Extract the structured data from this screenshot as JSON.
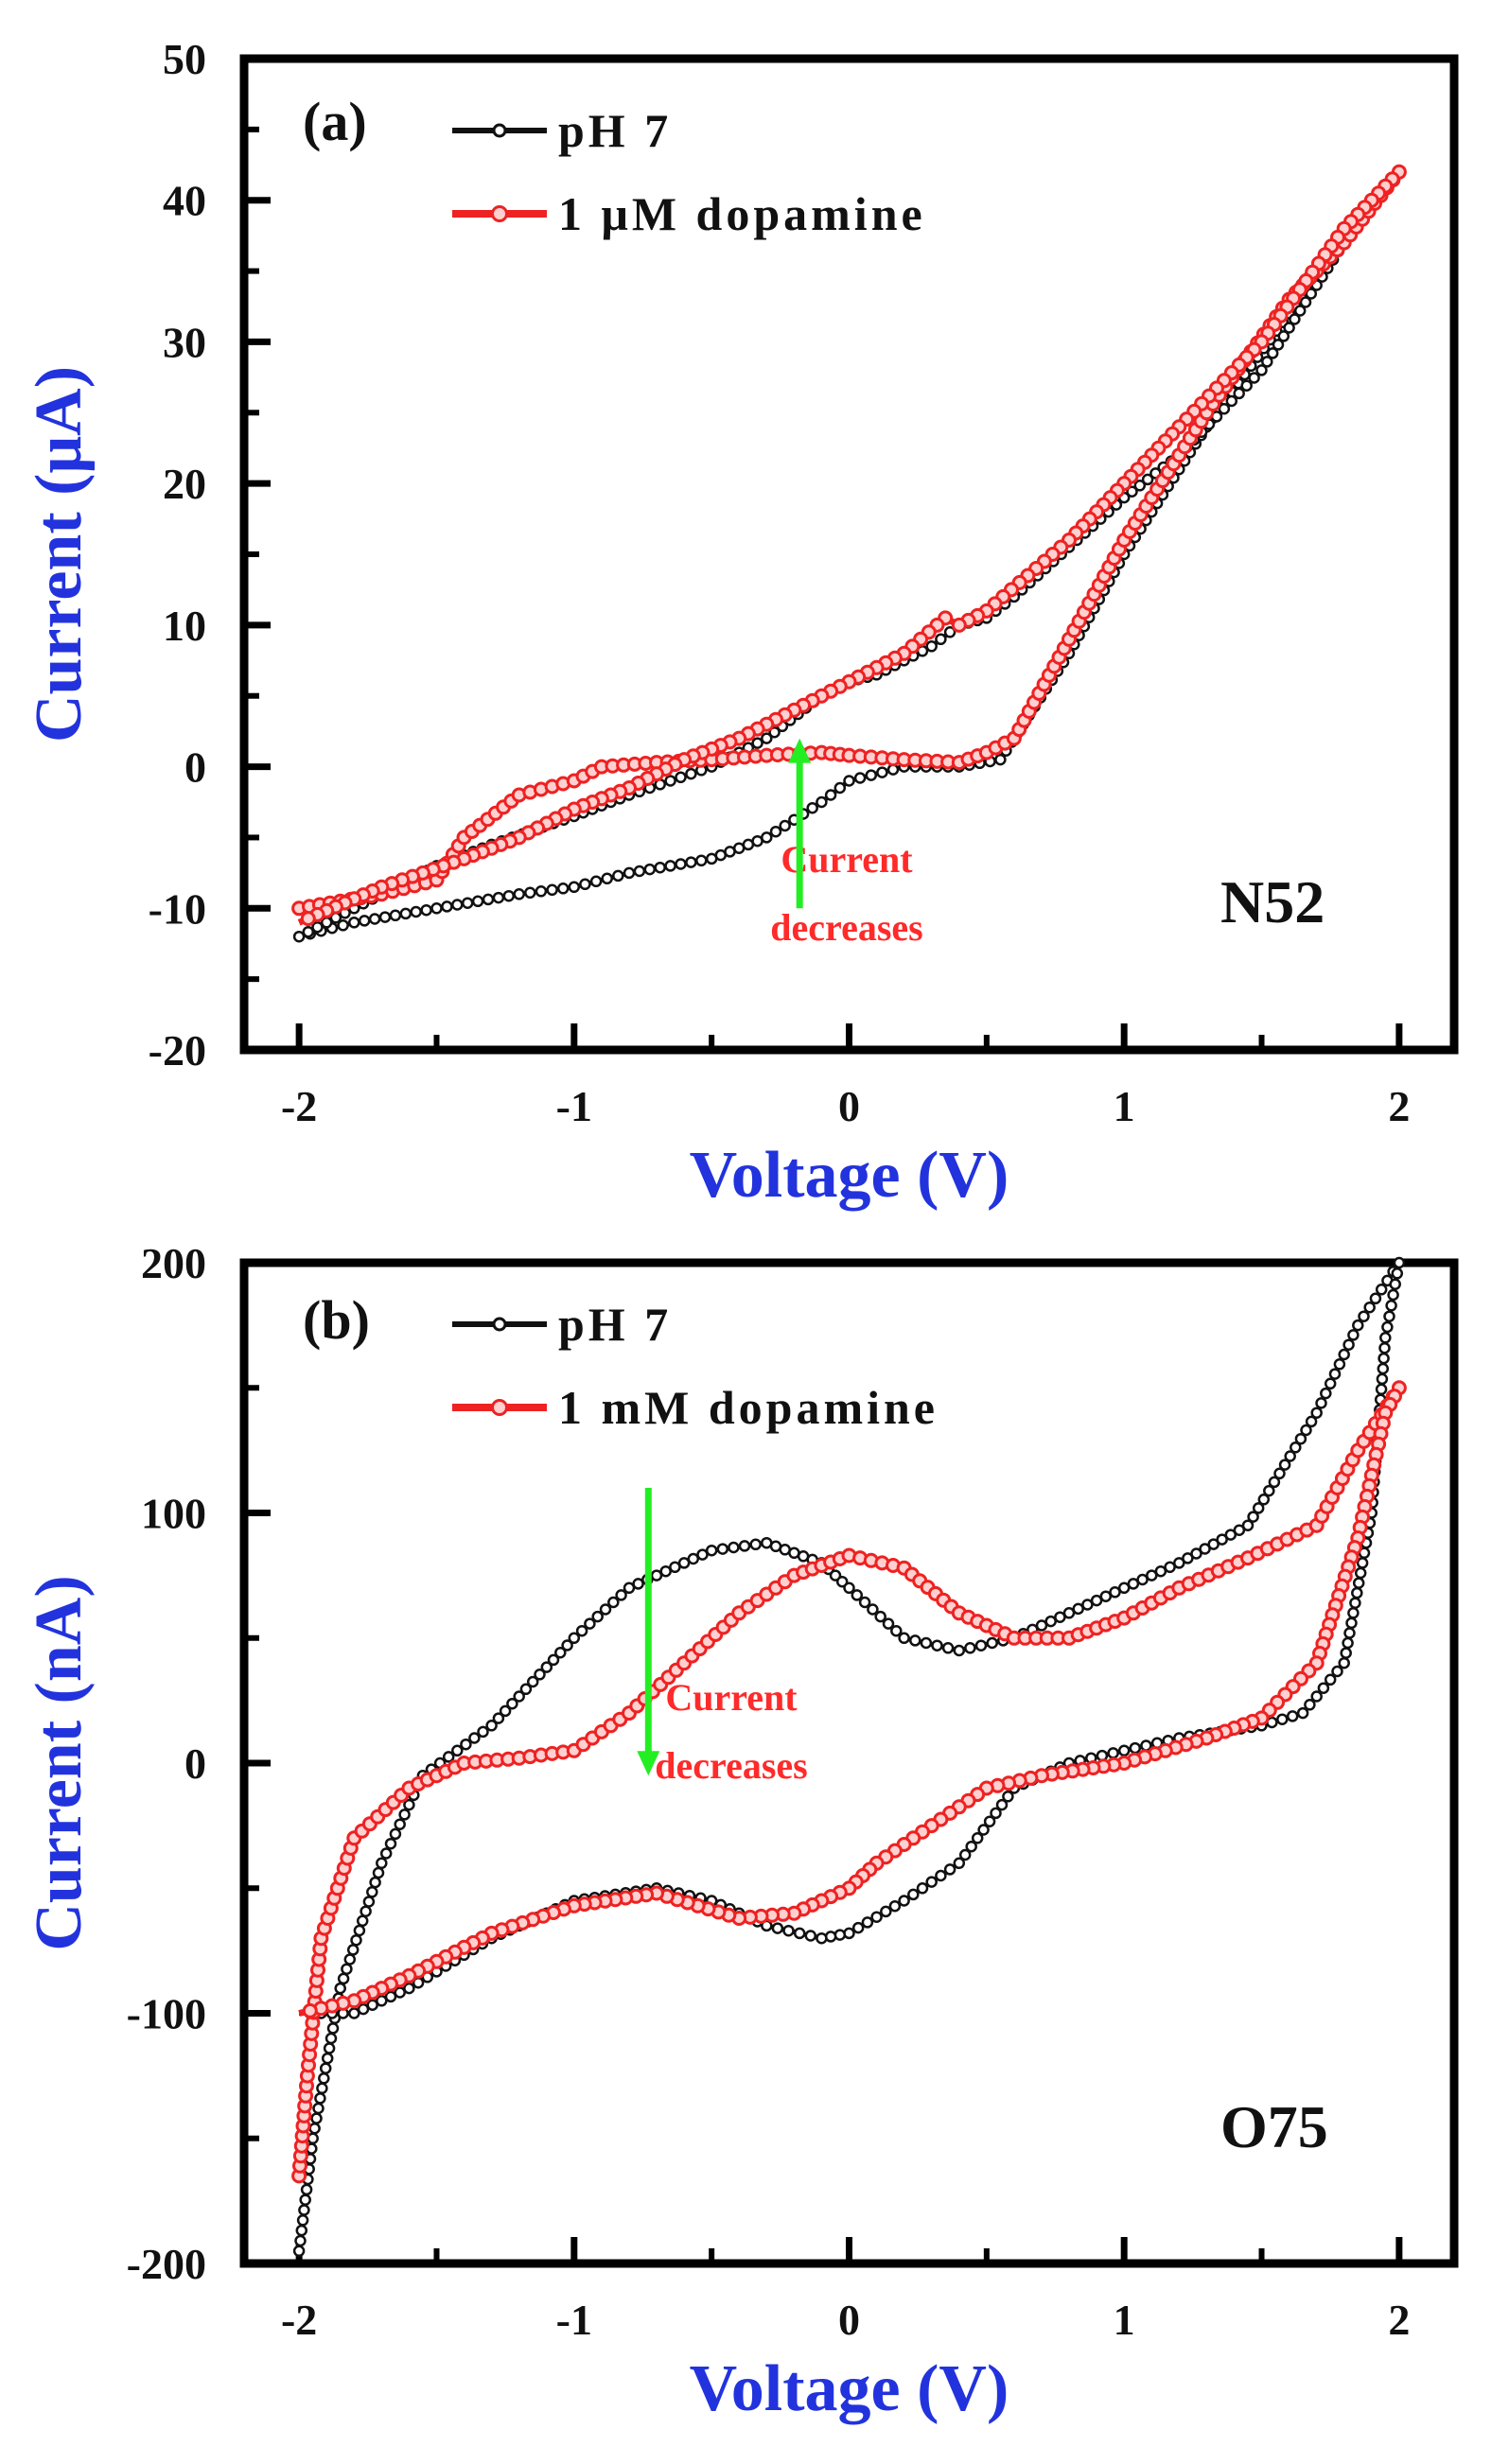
{
  "chart_data": [
    {
      "type": "line",
      "panel_label": "(a)",
      "xlabel": "Voltage (V)",
      "ylabel": "Current (μA)",
      "xlim": [
        -2.2,
        2.2
      ],
      "ylim": [
        -20,
        50
      ],
      "xticks": [
        -2,
        -1,
        0,
        1,
        2
      ],
      "xtick_labels": [
        "-2",
        "-1",
        "0",
        "1",
        "2"
      ],
      "yticks": [
        -20,
        -10,
        0,
        10,
        20,
        30,
        40,
        50
      ],
      "ytick_labels": [
        "-20",
        "-10",
        "0",
        "10",
        "20",
        "30",
        "40",
        "50"
      ],
      "sample": "N52",
      "annotation": [
        "Current",
        "decreases"
      ],
      "arrow": {
        "x": -0.18,
        "y_from": -10,
        "y_to": 2,
        "color": "#22ee22"
      },
      "series": [
        {
          "name": "pH7",
          "label": "pH 7",
          "color": "#111111",
          "x": [
            -2.0,
            -1.8,
            -1.5,
            -1.2,
            -1.0,
            -0.8,
            -0.5,
            -0.3,
            -0.1,
            0.0,
            0.2,
            0.4,
            0.55,
            0.8,
            1.0,
            1.3,
            1.6,
            1.8,
            2.0,
            1.8,
            1.5,
            1.2,
            1.0,
            0.6,
            0.5,
            0.4,
            0.3,
            0.2,
            0.1,
            0.0,
            -0.1,
            -0.3,
            -0.5,
            -0.8,
            -1.0,
            -1.3,
            -1.5,
            -1.8,
            -2.0
          ],
          "y": [
            -12,
            -11,
            -10,
            -9,
            -8.5,
            -7.5,
            -6.5,
            -5,
            -2.5,
            -1,
            0,
            0,
            0.5,
            8,
            15,
            24,
            32,
            37,
            42,
            37,
            28,
            22,
            19,
            12,
            10.5,
            10,
            8.5,
            7.5,
            6.5,
            6,
            5,
            2,
            0,
            -2,
            -3.5,
            -5.5,
            -7,
            -10,
            -12
          ]
        },
        {
          "name": "dopamine",
          "label": "1 μM dopamine",
          "color": "#ee2222",
          "x": [
            -2.0,
            -1.7,
            -1.5,
            -1.4,
            -1.2,
            -1.0,
            -0.9,
            -0.7,
            -0.5,
            -0.3,
            -0.1,
            0.0,
            0.2,
            0.4,
            0.5,
            0.6,
            0.8,
            1.0,
            1.3,
            1.6,
            1.8,
            2.0,
            1.8,
            1.5,
            1.2,
            1.0,
            0.8,
            0.5,
            0.4,
            0.35,
            0.2,
            0.0,
            -0.2,
            -0.4,
            -0.6,
            -0.8,
            -1.0,
            -1.2,
            -1.4,
            -1.7,
            -2.0
          ],
          "y": [
            -10,
            -9,
            -8,
            -5,
            -2,
            -1,
            0,
            0.3,
            0.5,
            0.8,
            1,
            0.8,
            0.5,
            0.3,
            1,
            2,
            9,
            16,
            25,
            33,
            37,
            42,
            38,
            30,
            24,
            20,
            16,
            11,
            10,
            10.5,
            8,
            6,
            4,
            2,
            0.5,
            -1.5,
            -3,
            -5,
            -6.5,
            -8.5,
            -11
          ]
        }
      ]
    },
    {
      "type": "line",
      "panel_label": "(b)",
      "xlabel": "Voltage (V)",
      "ylabel": "Current (nA)",
      "xlim": [
        -2.2,
        2.2
      ],
      "ylim": [
        -200,
        200
      ],
      "xticks": [
        -2,
        -1,
        0,
        1,
        2
      ],
      "xtick_labels": [
        "-2",
        "-1",
        "0",
        "1",
        "2"
      ],
      "yticks": [
        -200,
        -100,
        0,
        100,
        200
      ],
      "ytick_labels": [
        "-200",
        "-100",
        "0",
        "100",
        "200"
      ],
      "sample": "O75",
      "annotation": [
        "Current",
        "decreases"
      ],
      "arrow": {
        "x": -0.73,
        "y_from": 110,
        "y_to": -5,
        "color": "#22ee22"
      },
      "series": [
        {
          "name": "pH7",
          "label": "pH 7",
          "color": "#111111",
          "x": [
            -2.0,
            -1.95,
            -1.85,
            -1.7,
            -1.55,
            -1.3,
            -1.0,
            -0.8,
            -0.5,
            -0.3,
            -0.1,
            0.0,
            0.2,
            0.4,
            0.6,
            0.8,
            1.0,
            1.2,
            1.45,
            1.7,
            1.85,
            2.0,
            1.95,
            1.9,
            1.8,
            1.65,
            1.5,
            1.2,
            1.0,
            0.8,
            0.6,
            0.4,
            0.2,
            0.0,
            -0.1,
            -0.3,
            -0.5,
            -0.7,
            -1.0,
            -1.3,
            -1.6,
            -1.8,
            -2.0
          ],
          "y": [
            -195,
            -150,
            -90,
            -40,
            -5,
            15,
            50,
            70,
            85,
            88,
            80,
            70,
            50,
            45,
            50,
            60,
            70,
            80,
            95,
            140,
            175,
            200,
            170,
            100,
            40,
            20,
            15,
            10,
            5,
            0,
            -10,
            -40,
            -55,
            -68,
            -70,
            -65,
            -55,
            -50,
            -55,
            -70,
            -90,
            -100,
            -100
          ]
        },
        {
          "name": "dopamine",
          "label": "1 mM dopamine",
          "color": "#ee2222",
          "x": [
            -2.0,
            -1.97,
            -1.92,
            -1.8,
            -1.6,
            -1.4,
            -1.2,
            -1.0,
            -0.8,
            -0.6,
            -0.4,
            -0.2,
            0.0,
            0.2,
            0.4,
            0.6,
            0.8,
            1.0,
            1.2,
            1.45,
            1.7,
            1.85,
            2.0,
            1.95,
            1.85,
            1.7,
            1.5,
            1.3,
            1.0,
            0.7,
            0.5,
            0.3,
            0.1,
            0.0,
            -0.2,
            -0.4,
            -0.7,
            -1.0,
            -1.3,
            -1.6,
            -1.8,
            -2.0
          ],
          "y": [
            -165,
            -125,
            -70,
            -30,
            -10,
            0,
            2,
            5,
            20,
            40,
            60,
            75,
            83,
            78,
            60,
            50,
            50,
            58,
            70,
            82,
            95,
            125,
            150,
            140,
            90,
            40,
            18,
            10,
            0,
            -5,
            -10,
            -25,
            -40,
            -50,
            -60,
            -62,
            -52,
            -57,
            -68,
            -85,
            -95,
            -100
          ]
        }
      ]
    }
  ]
}
